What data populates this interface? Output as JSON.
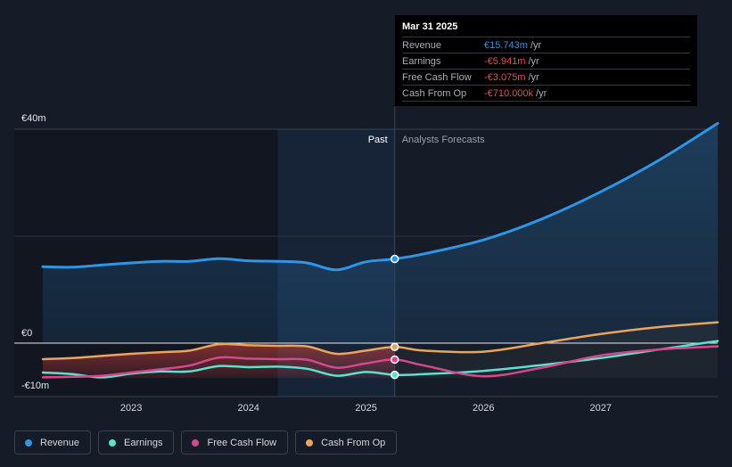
{
  "chart_data": {
    "type": "line",
    "y_axis": {
      "top_label": "€40m",
      "zero_label": "€0",
      "bottom_label": "-€10m",
      "ylim": [
        -10,
        40
      ],
      "grid": true
    },
    "x_axis": {
      "ticks": [
        "2023",
        "2024",
        "2025",
        "2026",
        "2027"
      ],
      "range": [
        "2022-04",
        "2027-12"
      ]
    },
    "regions": {
      "past_label": "Past",
      "forecast_label": "Analysts Forecasts",
      "divider_date": "2025-03-31"
    },
    "series": [
      {
        "name": "Revenue",
        "color": "#2f96e6",
        "points": [
          [
            "2022-04-01",
            14.3
          ],
          [
            "2022-07-01",
            14.2
          ],
          [
            "2022-10-01",
            14.6
          ],
          [
            "2023-01-01",
            15.0
          ],
          [
            "2023-04-01",
            15.3
          ],
          [
            "2023-07-01",
            15.3
          ],
          [
            "2023-10-01",
            15.8
          ],
          [
            "2024-01-01",
            15.4
          ],
          [
            "2024-04-01",
            15.3
          ],
          [
            "2024-07-01",
            15.0
          ],
          [
            "2024-10-01",
            13.7
          ],
          [
            "2024-12-31",
            15.2
          ],
          [
            "2025-03-31",
            15.743
          ],
          [
            "2025-07-01",
            16.7
          ],
          [
            "2026-01-01",
            19.3
          ],
          [
            "2026-07-01",
            23.2
          ],
          [
            "2027-01-01",
            28.3
          ],
          [
            "2027-07-01",
            34.2
          ],
          [
            "2027-12-31",
            41.1
          ]
        ]
      },
      {
        "name": "Earnings",
        "color": "#5ce0cf",
        "points": [
          [
            "2022-04-01",
            -5.5
          ],
          [
            "2022-07-01",
            -5.8
          ],
          [
            "2022-10-01",
            -6.4
          ],
          [
            "2023-01-01",
            -5.7
          ],
          [
            "2023-04-01",
            -5.3
          ],
          [
            "2023-07-01",
            -5.3
          ],
          [
            "2023-10-01",
            -4.3
          ],
          [
            "2024-01-01",
            -4.5
          ],
          [
            "2024-04-01",
            -4.4
          ],
          [
            "2024-07-01",
            -4.8
          ],
          [
            "2024-10-01",
            -6.1
          ],
          [
            "2024-12-31",
            -5.4
          ],
          [
            "2025-03-31",
            -5.941
          ],
          [
            "2025-07-01",
            -5.8
          ],
          [
            "2026-01-01",
            -5.2
          ],
          [
            "2026-07-01",
            -4.1
          ],
          [
            "2027-01-01",
            -2.8
          ],
          [
            "2027-07-01",
            -1.2
          ],
          [
            "2027-12-31",
            0.4
          ]
        ]
      },
      {
        "name": "Free Cash Flow",
        "color": "#d6488d",
        "points": [
          [
            "2022-04-01",
            -6.4
          ],
          [
            "2022-07-01",
            -6.3
          ],
          [
            "2022-10-01",
            -6.1
          ],
          [
            "2023-01-01",
            -5.5
          ],
          [
            "2023-04-01",
            -4.9
          ],
          [
            "2023-07-01",
            -4.2
          ],
          [
            "2023-10-01",
            -2.7
          ],
          [
            "2024-01-01",
            -2.9
          ],
          [
            "2024-04-01",
            -3.0
          ],
          [
            "2024-07-01",
            -3.1
          ],
          [
            "2024-10-01",
            -4.6
          ],
          [
            "2024-12-31",
            -3.8
          ],
          [
            "2025-03-31",
            -3.075
          ],
          [
            "2025-07-01",
            -4.2
          ],
          [
            "2026-01-01",
            -6.2
          ],
          [
            "2026-07-01",
            -4.6
          ],
          [
            "2027-01-01",
            -2.3
          ],
          [
            "2027-07-01",
            -1.2
          ],
          [
            "2027-12-31",
            -0.6
          ]
        ]
      },
      {
        "name": "Cash From Op",
        "color": "#e8a65d",
        "points": [
          [
            "2022-04-01",
            -3.0
          ],
          [
            "2022-07-01",
            -2.8
          ],
          [
            "2022-10-01",
            -2.4
          ],
          [
            "2023-01-01",
            -2.0
          ],
          [
            "2023-04-01",
            -1.7
          ],
          [
            "2023-07-01",
            -1.4
          ],
          [
            "2023-10-01",
            -0.2
          ],
          [
            "2024-01-01",
            -0.4
          ],
          [
            "2024-04-01",
            -0.5
          ],
          [
            "2024-07-01",
            -0.6
          ],
          [
            "2024-10-01",
            -2.0
          ],
          [
            "2024-12-31",
            -1.4
          ],
          [
            "2025-03-31",
            -0.71
          ],
          [
            "2025-07-01",
            -1.4
          ],
          [
            "2026-01-01",
            -1.6
          ],
          [
            "2026-07-01",
            0.0
          ],
          [
            "2027-01-01",
            1.7
          ],
          [
            "2027-07-01",
            3.0
          ],
          [
            "2027-12-31",
            3.9
          ]
        ]
      }
    ],
    "tooltip": {
      "date": "Mar 31 2025",
      "rows": [
        {
          "label": "Revenue",
          "value": "€15.743m",
          "unit": "/yr",
          "color": "#2f96e6"
        },
        {
          "label": "Earnings",
          "value": "-€5.941m",
          "unit": "/yr",
          "color": "#ef4b4b"
        },
        {
          "label": "Free Cash Flow",
          "value": "-€3.075m",
          "unit": "/yr",
          "color": "#ef4b4b"
        },
        {
          "label": "Cash From Op",
          "value": "-€710.000k",
          "unit": "/yr",
          "color": "#ef4b4b"
        }
      ]
    },
    "legend": [
      {
        "label": "Revenue",
        "color": "#2f96e6"
      },
      {
        "label": "Earnings",
        "color": "#5ce0cf"
      },
      {
        "label": "Free Cash Flow",
        "color": "#d6488d"
      },
      {
        "label": "Cash From Op",
        "color": "#e8a65d"
      }
    ]
  }
}
